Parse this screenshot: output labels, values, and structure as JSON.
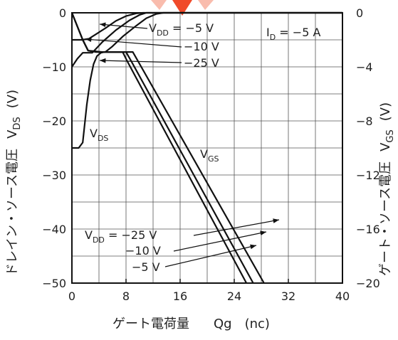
{
  "chart_data": {
    "type": "line",
    "x_axis": {
      "label_jp": "ゲート電荷量",
      "label_sym": "Qg",
      "label_unit": "(nc)",
      "range": [
        0,
        40
      ],
      "ticks": [
        0,
        8,
        16,
        24,
        32,
        40
      ]
    },
    "y_left": {
      "label_jp": "ドレイン・ソース電圧",
      "label_sym": "V",
      "label_sub": "DS",
      "label_unit": "(V)",
      "range": [
        -50,
        0
      ],
      "ticks": [
        0,
        -10,
        -20,
        -30,
        -40,
        -50
      ]
    },
    "y_right": {
      "label_jp": "ゲート・ソース電圧",
      "label_sym": "V",
      "label_sub": "GS",
      "label_unit": "(V)",
      "range": [
        -20,
        0
      ],
      "ticks": [
        0,
        -4,
        -8,
        -12,
        -16,
        -20
      ]
    },
    "condition": {
      "sym": "I",
      "sub": "D",
      "rest": " = −5 A"
    },
    "grid": true,
    "series": [
      {
        "name": "VDS, VDD = −5 V",
        "axis": "left",
        "points": [
          [
            0,
            -5
          ],
          [
            1.5,
            -5
          ],
          [
            2.5,
            -4.8
          ],
          [
            3.5,
            -4
          ],
          [
            5,
            -2.8
          ],
          [
            6.5,
            -1.5
          ],
          [
            8,
            -0.6
          ],
          [
            9.5,
            -0.1
          ],
          [
            10.5,
            0
          ],
          [
            40,
            0
          ]
        ]
      },
      {
        "name": "VDS, VDD = −10 V",
        "axis": "left",
        "points": [
          [
            0,
            -10
          ],
          [
            0.8,
            -8.5
          ],
          [
            1.6,
            -7.4
          ],
          [
            3,
            -7.4
          ],
          [
            4.5,
            -5.4
          ],
          [
            6.5,
            -3.2
          ],
          [
            8.5,
            -1.4
          ],
          [
            10,
            -0.4
          ],
          [
            11,
            0
          ],
          [
            40,
            0
          ]
        ]
      },
      {
        "name": "VDS, VDD = −25 V",
        "axis": "left",
        "points": [
          [
            0,
            -25
          ],
          [
            1,
            -25
          ],
          [
            1.6,
            -24
          ],
          [
            2.2,
            -17
          ],
          [
            2.7,
            -12.5
          ],
          [
            3.2,
            -9.5
          ],
          [
            3.7,
            -8
          ],
          [
            4.3,
            -7.4
          ],
          [
            5,
            -7.2
          ],
          [
            6,
            -6.2
          ],
          [
            7.5,
            -4.4
          ],
          [
            9.5,
            -2.4
          ],
          [
            11,
            -1
          ],
          [
            12.5,
            -0.2
          ],
          [
            13.5,
            0
          ],
          [
            40,
            0
          ]
        ]
      },
      {
        "name": "VGS, VDD = −5 V",
        "axis": "right",
        "points": [
          [
            0,
            0
          ],
          [
            1.6,
            -2
          ],
          [
            2.4,
            -2.8
          ],
          [
            3.5,
            -2.9
          ],
          [
            7.5,
            -2.9
          ],
          [
            8.2,
            -3.6
          ],
          [
            25.8,
            -20
          ]
        ]
      },
      {
        "name": "VGS, VDD = −10 V",
        "axis": "right",
        "points": [
          [
            0,
            0
          ],
          [
            1.6,
            -2
          ],
          [
            2.4,
            -2.8
          ],
          [
            4,
            -2.9
          ],
          [
            8,
            -2.9
          ],
          [
            8.8,
            -3.6
          ],
          [
            26.8,
            -20
          ]
        ]
      },
      {
        "name": "VGS, VDD = −25 V",
        "axis": "right",
        "points": [
          [
            0,
            0
          ],
          [
            1.6,
            -2
          ],
          [
            2.4,
            -2.8
          ],
          [
            4.5,
            -2.9
          ],
          [
            9,
            -2.9
          ],
          [
            9.8,
            -3.6
          ],
          [
            28.4,
            -20
          ]
        ]
      }
    ],
    "annotations": {
      "vdd_top": {
        "sym": "V",
        "sub": "DD",
        "rest": " = −5 V"
      },
      "top_10": "−10 V",
      "top_25": "−25 V",
      "vds_curve": {
        "sym": "V",
        "sub": "DS"
      },
      "vgs_curve": {
        "sym": "V",
        "sub": "GS"
      },
      "vdd_bottom": {
        "sym": "V",
        "sub": "DD",
        "rest": " = −25 V"
      },
      "bottom_10": "−10 V",
      "bottom_5": "−5 V"
    }
  }
}
